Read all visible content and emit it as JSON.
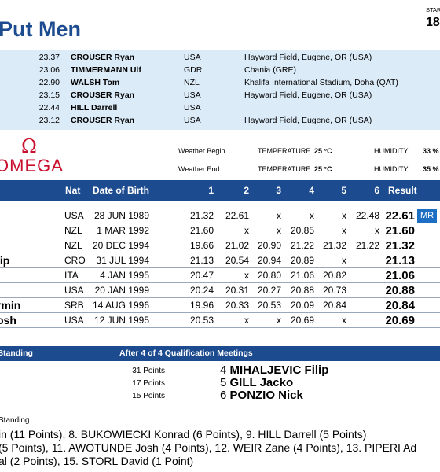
{
  "header": {
    "title": "Put Men",
    "start_label": "STAR",
    "start_value": "18"
  },
  "records": [
    {
      "mark": "23.37",
      "name": "CROUSER Ryan",
      "nat": "USA",
      "venue": "Hayward Field, Eugene, OR (USA)"
    },
    {
      "mark": "23.06",
      "name": "TIMMERMANN Ulf",
      "nat": "GDR",
      "venue": "Chania (GRE)"
    },
    {
      "mark": "22.90",
      "name": "WALSH Tom",
      "nat": "NZL",
      "venue": "Khalifa International Stadium, Doha (QAT)"
    },
    {
      "mark": "23.15",
      "name": "CROUSER Ryan",
      "nat": "USA",
      "venue": "Hayward Field, Eugene, OR (USA)"
    },
    {
      "mark": "22.44",
      "name": "HILL Darrell",
      "nat": "USA",
      "venue": ""
    },
    {
      "mark": "23.12",
      "name": "CROUSER Ryan",
      "nat": "USA",
      "venue": "Hayward Field, Eugene, OR (USA)"
    }
  ],
  "brand": {
    "symbol": "Ω",
    "word": "OMEGA"
  },
  "weather": {
    "begin_label": "Weather Begin",
    "end_label": "Weather End",
    "temp_label": "TEMPERATURE",
    "temp_begin": "25 °C",
    "temp_end": "25 °C",
    "hum_label": "HUMIDITY",
    "hum_begin": "33 %",
    "hum_end": "35 %"
  },
  "table": {
    "headers": {
      "nat": "Nat",
      "dob": "Date of Birth",
      "a1": "1",
      "a2": "2",
      "a3": "3",
      "a4": "4",
      "a5": "5",
      "a6": "6",
      "result": "Result"
    },
    "rows": [
      {
        "name": "",
        "nat": "USA",
        "dob": "28 JUN 1989",
        "att": [
          "21.32",
          "22.61",
          "x",
          "x",
          "x",
          "22.48"
        ],
        "result": "22.61",
        "badge": "MR"
      },
      {
        "name": "",
        "nat": "NZL",
        "dob": "1 MAR 1992",
        "att": [
          "21.60",
          "x",
          "x",
          "20.85",
          "x",
          "x"
        ],
        "result": "21.60",
        "badge": ""
      },
      {
        "name": "",
        "nat": "NZL",
        "dob": "20 DEC 1994",
        "att": [
          "19.66",
          "21.02",
          "20.90",
          "21.22",
          "21.32",
          "21.22"
        ],
        "result": "21.32",
        "badge": ""
      },
      {
        "name": "lip",
        "nat": "CRO",
        "dob": "31 JUL 1994",
        "att": [
          "21.13",
          "20.54",
          "20.94",
          "20.89",
          "x",
          ""
        ],
        "result": "21.13",
        "badge": ""
      },
      {
        "name": "",
        "nat": "ITA",
        "dob": "4 JAN 1995",
        "att": [
          "20.47",
          "x",
          "20.80",
          "21.06",
          "20.82",
          ""
        ],
        "result": "21.06",
        "badge": ""
      },
      {
        "name": "",
        "nat": "USA",
        "dob": "20 JAN 1999",
        "att": [
          "20.24",
          "20.31",
          "20.27",
          "20.88",
          "20.73",
          ""
        ],
        "result": "20.88",
        "badge": ""
      },
      {
        "name": "rmin",
        "nat": "SRB",
        "dob": "14 AUG 1996",
        "att": [
          "19.96",
          "20.33",
          "20.53",
          "20.09",
          "20.84",
          ""
        ],
        "result": "20.84",
        "badge": ""
      },
      {
        "name": "osh",
        "nat": "USA",
        "dob": "12 JUN 1995",
        "att": [
          "20.53",
          "x",
          "x",
          "20.69",
          "x",
          ""
        ],
        "result": "20.69",
        "badge": ""
      }
    ]
  },
  "standing": {
    "left_header": "Standing",
    "right_header": "After 4 of 4 Qualification Meetings",
    "points": [
      "31 Points",
      "17 Points",
      "15 Points"
    ],
    "ranks": [
      {
        "pos": "4",
        "name": "MIHALJEVIC Filip"
      },
      {
        "pos": "5",
        "name": "GILL Jacko"
      },
      {
        "pos": "6",
        "name": "PONZIO Nick"
      }
    ],
    "sub_label": "Standing",
    "lines": [
      "in (11 Points), 8. BUKOWIECKI Konrad (6 Points), 9. HILL Darrell (5 Points)",
      "(5 Points), 11. AWOTUNDE Josh (4 Points), 12. WEIR Zane (4 Points), 13. PIPERI Ad",
      "al (2 Points), 15. STORL David (1 Point)"
    ]
  }
}
